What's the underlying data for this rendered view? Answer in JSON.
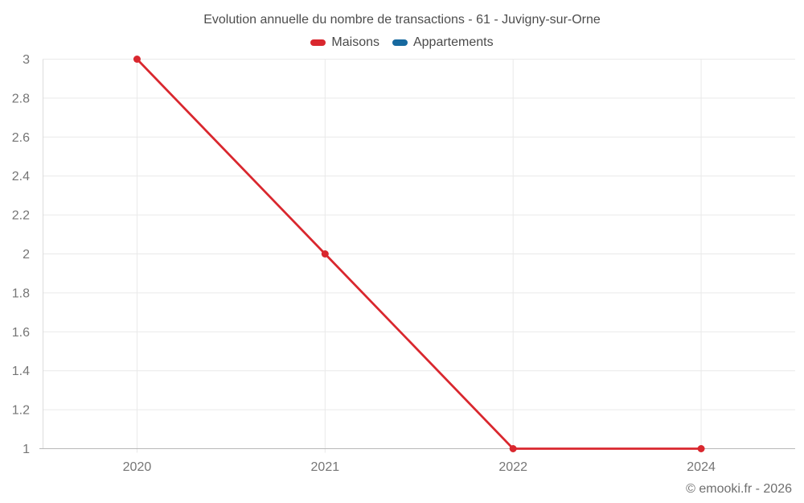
{
  "title": "Evolution annuelle du nombre de transactions - 61 - Juvigny-sur-Orne",
  "legend": [
    {
      "label": "Maisons",
      "color": "#d9272e"
    },
    {
      "label": "Appartements",
      "color": "#17699f"
    }
  ],
  "footer": {
    "copyright": "© emooki.fr - 2026"
  },
  "chart_data": {
    "type": "line",
    "title": "Evolution annuelle du nombre de transactions - 61 - Juvigny-sur-Orne",
    "categories": [
      "2020",
      "2021",
      "2022",
      "2024"
    ],
    "series": [
      {
        "name": "Maisons",
        "color": "#d9272e",
        "values": [
          3,
          2,
          1,
          1
        ]
      },
      {
        "name": "Appartements",
        "color": "#17699f",
        "values": []
      }
    ],
    "xlabel": "",
    "ylabel": "",
    "ylim": [
      1,
      3
    ],
    "ytick_step": 0.2,
    "yticks": [
      "1",
      "1.2",
      "1.4",
      "1.6",
      "1.8",
      "2",
      "2.2",
      "2.4",
      "2.6",
      "2.8",
      "3"
    ],
    "grid": true,
    "legend_position": "top"
  }
}
